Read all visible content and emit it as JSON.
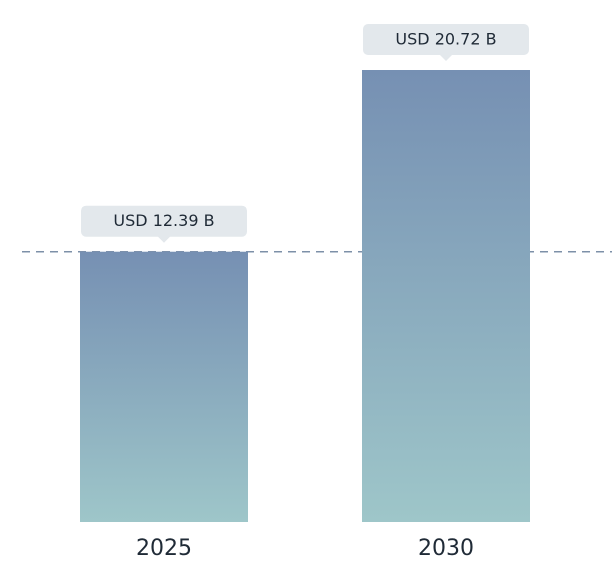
{
  "chart_data": {
    "type": "bar",
    "categories": [
      "2025",
      "2030"
    ],
    "values": [
      12.39,
      20.72
    ],
    "value_labels": [
      "USD 12.39 B",
      "USD 20.72 B"
    ],
    "color": [
      "#7690b3",
      "#9ec6c9"
    ],
    "label_color": "#e3e8ec",
    "reference_color": "#7d90a8"
  }
}
